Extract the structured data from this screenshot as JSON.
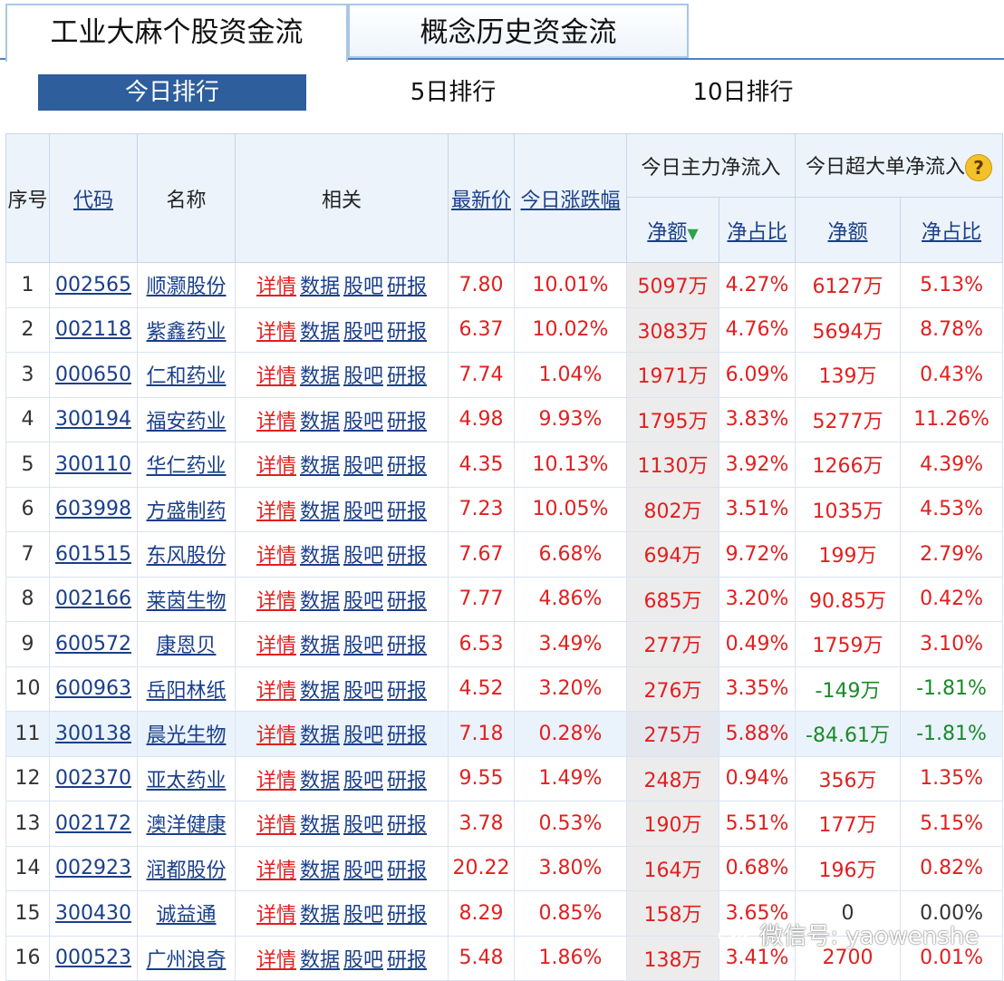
{
  "tabs": {
    "active": "工业大麻个股资金流",
    "inactive": "概念历史资金流"
  },
  "subtabs": {
    "today": "今日排行",
    "d5": "5日排行",
    "d10": "10日排行"
  },
  "columns": {
    "idx": "序号",
    "code": "代码",
    "name": "名称",
    "related": "相关",
    "price": "最新价",
    "change": "今日涨跌幅",
    "main_group": "今日主力净流入",
    "super_group": "今日超大单净流入",
    "net_amount": "净额",
    "net_ratio": "净占比",
    "super_amount": "净额",
    "super_ratio": "净占比"
  },
  "related_links": {
    "detail": "详情",
    "data": "数据",
    "forum": "股吧",
    "report": "研报"
  },
  "rows": [
    {
      "idx": "1",
      "code": "002565",
      "name": "顺灏股份",
      "price": "7.80",
      "change": "10.01%",
      "net": "5097万",
      "ratio": "4.27%",
      "snet": "6127万",
      "sratio": "5.13%",
      "sign": "pos"
    },
    {
      "idx": "2",
      "code": "002118",
      "name": "紫鑫药业",
      "price": "6.37",
      "change": "10.02%",
      "net": "3083万",
      "ratio": "4.76%",
      "snet": "5694万",
      "sratio": "8.78%",
      "sign": "pos"
    },
    {
      "idx": "3",
      "code": "000650",
      "name": "仁和药业",
      "price": "7.74",
      "change": "1.04%",
      "net": "1971万",
      "ratio": "6.09%",
      "snet": "139万",
      "sratio": "0.43%",
      "sign": "pos"
    },
    {
      "idx": "4",
      "code": "300194",
      "name": "福安药业",
      "price": "4.98",
      "change": "9.93%",
      "net": "1795万",
      "ratio": "3.83%",
      "snet": "5277万",
      "sratio": "11.26%",
      "sign": "pos"
    },
    {
      "idx": "5",
      "code": "300110",
      "name": "华仁药业",
      "price": "4.35",
      "change": "10.13%",
      "net": "1130万",
      "ratio": "3.92%",
      "snet": "1266万",
      "sratio": "4.39%",
      "sign": "pos"
    },
    {
      "idx": "6",
      "code": "603998",
      "name": "方盛制药",
      "price": "7.23",
      "change": "10.05%",
      "net": "802万",
      "ratio": "3.51%",
      "snet": "1035万",
      "sratio": "4.53%",
      "sign": "pos"
    },
    {
      "idx": "7",
      "code": "601515",
      "name": "东风股份",
      "price": "7.67",
      "change": "6.68%",
      "net": "694万",
      "ratio": "9.72%",
      "snet": "199万",
      "sratio": "2.79%",
      "sign": "pos"
    },
    {
      "idx": "8",
      "code": "002166",
      "name": "莱茵生物",
      "price": "7.77",
      "change": "4.86%",
      "net": "685万",
      "ratio": "3.20%",
      "snet": "90.85万",
      "sratio": "0.42%",
      "sign": "pos"
    },
    {
      "idx": "9",
      "code": "600572",
      "name": "康恩贝",
      "price": "6.53",
      "change": "3.49%",
      "net": "277万",
      "ratio": "0.49%",
      "snet": "1759万",
      "sratio": "3.10%",
      "sign": "pos"
    },
    {
      "idx": "10",
      "code": "600963",
      "name": "岳阳林纸",
      "price": "4.52",
      "change": "3.20%",
      "net": "276万",
      "ratio": "3.35%",
      "snet": "-149万",
      "sratio": "-1.81%",
      "sign": "neg"
    },
    {
      "idx": "11",
      "code": "300138",
      "name": "晨光生物",
      "price": "7.18",
      "change": "0.28%",
      "net": "275万",
      "ratio": "5.88%",
      "snet": "-84.61万",
      "sratio": "-1.81%",
      "sign": "neg"
    },
    {
      "idx": "12",
      "code": "002370",
      "name": "亚太药业",
      "price": "9.55",
      "change": "1.49%",
      "net": "248万",
      "ratio": "0.94%",
      "snet": "356万",
      "sratio": "1.35%",
      "sign": "pos"
    },
    {
      "idx": "13",
      "code": "002172",
      "name": "澳洋健康",
      "price": "3.78",
      "change": "0.53%",
      "net": "190万",
      "ratio": "5.51%",
      "snet": "177万",
      "sratio": "5.15%",
      "sign": "pos"
    },
    {
      "idx": "14",
      "code": "002923",
      "name": "润都股份",
      "price": "20.22",
      "change": "3.80%",
      "net": "164万",
      "ratio": "0.68%",
      "snet": "196万",
      "sratio": "0.82%",
      "sign": "pos"
    },
    {
      "idx": "15",
      "code": "300430",
      "name": "诚益通",
      "price": "8.29",
      "change": "0.85%",
      "net": "158万",
      "ratio": "3.65%",
      "snet": "0",
      "sratio": "0.00%",
      "sign": "zero"
    },
    {
      "idx": "16",
      "code": "000523",
      "name": "广州浪奇",
      "price": "5.48",
      "change": "1.86%",
      "net": "138万",
      "ratio": "3.41%",
      "snet": "2700",
      "sratio": "0.01%",
      "sign": "pos"
    }
  ],
  "highlight_row_index": 10,
  "watermark": "微信号: yaowenshe",
  "icons": {
    "help": "help-question-icon",
    "sort": "sort-down-arrow-icon",
    "wechat": "wechat-logo-icon"
  },
  "colors": {
    "positive": "#e02020",
    "negative": "#1a8a2a",
    "link": "#1a3f8a",
    "active_subtab": "#2e5e9c"
  }
}
